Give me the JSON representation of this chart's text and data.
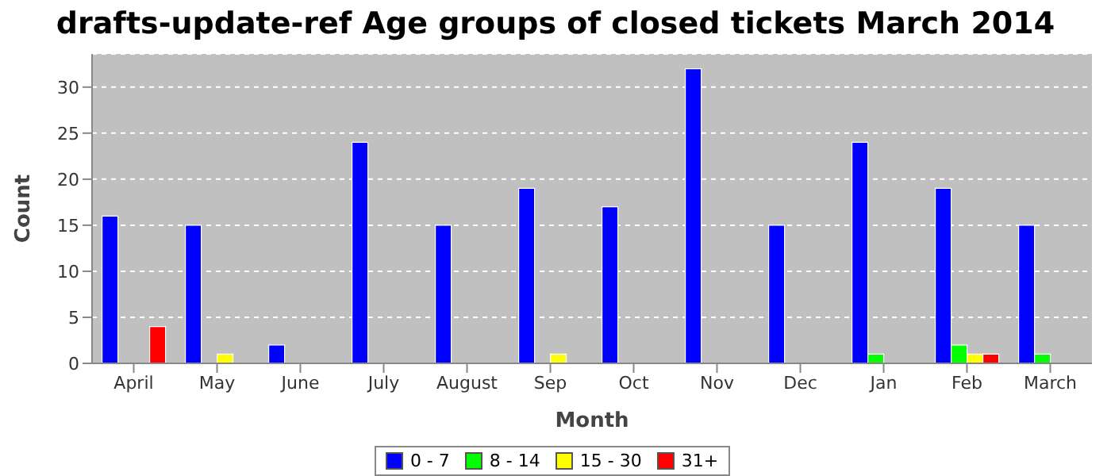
{
  "chart_data": {
    "type": "bar",
    "title": "drafts-update-ref Age groups of closed tickets March 2014",
    "xlabel": "Month",
    "ylabel": "Count",
    "categories": [
      "April",
      "May",
      "June",
      "July",
      "August",
      "Sep",
      "Oct",
      "Nov",
      "Dec",
      "Jan",
      "Feb",
      "March"
    ],
    "series": [
      {
        "name": "0 - 7",
        "color": "#0000ff",
        "values": [
          16,
          15,
          2,
          24,
          15,
          19,
          17,
          32,
          15,
          24,
          19,
          15
        ]
      },
      {
        "name": "8 - 14",
        "color": "#00ff00",
        "values": [
          0,
          0,
          0,
          0,
          0,
          0,
          0,
          0,
          0,
          1,
          2,
          1
        ]
      },
      {
        "name": "15 - 30",
        "color": "#ffff00",
        "values": [
          0,
          1,
          0,
          0,
          0,
          1,
          0,
          0,
          0,
          0,
          1,
          0
        ]
      },
      {
        "name": "31+",
        "color": "#ff0000",
        "values": [
          4,
          0,
          0,
          0,
          0,
          0,
          0,
          0,
          0,
          0,
          1,
          0
        ]
      }
    ],
    "ylim": [
      0,
      33.6
    ],
    "yticks": [
      0,
      5,
      10,
      15,
      20,
      25,
      30
    ],
    "grid": "y",
    "legend": "bottom"
  }
}
